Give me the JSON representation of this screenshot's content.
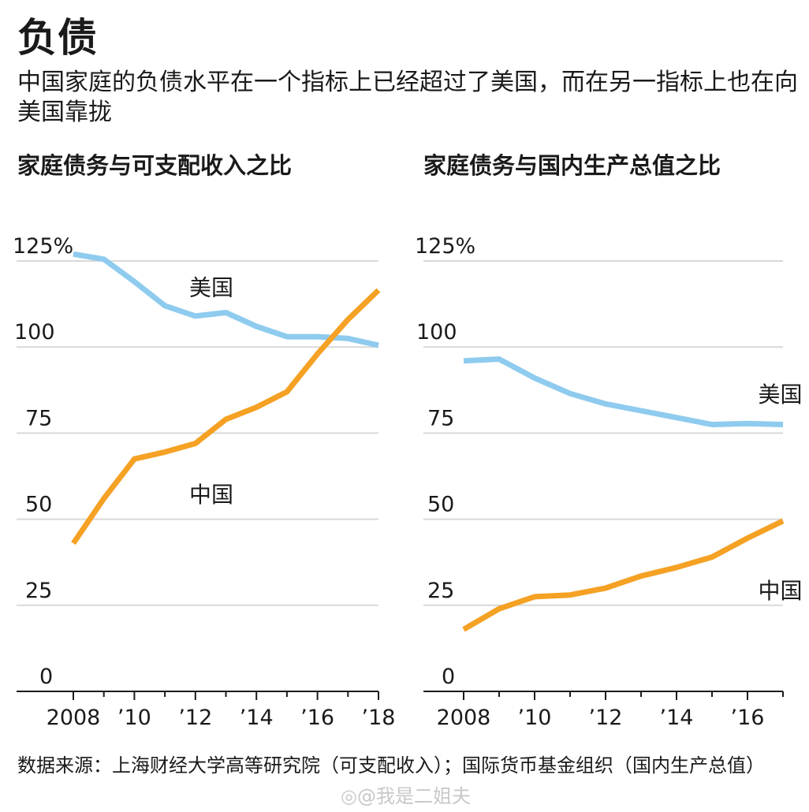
{
  "header": {
    "title": "负债",
    "subtitle": "中国家庭的负债水平在一个指标上已经超过了美国，而在另一指标上也在向美国靠拢"
  },
  "colors": {
    "us": "#8ecbee",
    "china": "#f5a124",
    "grid": "#d9d9d9",
    "axis": "#1a1a1a"
  },
  "chart_data": [
    {
      "type": "line",
      "title": "家庭债务与可支配收入之比",
      "xlabel": "",
      "ylabel": "",
      "x": [
        2008,
        2009,
        2010,
        2011,
        2012,
        2013,
        2014,
        2015,
        2016,
        2017,
        2018
      ],
      "xlim": [
        2008,
        2018
      ],
      "ylim": [
        0,
        125
      ],
      "yticks": [
        0,
        25,
        50,
        75,
        100,
        125
      ],
      "ytick_labels": [
        "0",
        "25",
        "50",
        "75",
        "100",
        "125%"
      ],
      "xticks": [
        2008,
        2010,
        2012,
        2014,
        2016,
        2018
      ],
      "xtick_labels": [
        "2008",
        "’10",
        "’12",
        "’14",
        "’16",
        "’18"
      ],
      "grid": true,
      "series": [
        {
          "name": "美国",
          "key": "us",
          "values": [
            127,
            125.5,
            119,
            112,
            109,
            110,
            106,
            103,
            103,
            102.5,
            100.5
          ]
        },
        {
          "name": "中国",
          "key": "china",
          "values": [
            43,
            56,
            67.5,
            69.5,
            72,
            79,
            82.5,
            87,
            98,
            108,
            116.5
          ]
        }
      ],
      "annotations": [
        {
          "text": "美国",
          "series": "us",
          "x": 2011.8,
          "y": 115
        },
        {
          "text": "中国",
          "series": "china",
          "x": 2011.8,
          "y": 55
        }
      ]
    },
    {
      "type": "line",
      "title": "家庭债务与国内生产总值之比",
      "xlabel": "",
      "ylabel": "",
      "x": [
        2008,
        2009,
        2010,
        2011,
        2012,
        2013,
        2014,
        2015,
        2016,
        2017
      ],
      "xlim": [
        2008,
        2017
      ],
      "ylim": [
        0,
        125
      ],
      "yticks": [
        0,
        25,
        50,
        75,
        100,
        125
      ],
      "ytick_labels": [
        "0",
        "25",
        "50",
        "75",
        "100",
        "125%"
      ],
      "xticks": [
        2008,
        2010,
        2012,
        2014,
        2016
      ],
      "xtick_labels": [
        "2008",
        "’10",
        "’12",
        "’14",
        "’16"
      ],
      "grid": true,
      "series": [
        {
          "name": "美国",
          "key": "us",
          "values": [
            96,
            96.5,
            91,
            86.5,
            83.5,
            81.5,
            79.5,
            77.5,
            77.8,
            77.5
          ]
        },
        {
          "name": "中国",
          "key": "china",
          "values": [
            18,
            24,
            27.5,
            28,
            30,
            33.5,
            36,
            39,
            44.5,
            49.5
          ]
        }
      ],
      "annotations": [
        {
          "text": "美国",
          "series": "us",
          "x": 2016.3,
          "y": 84
        },
        {
          "text": "中国",
          "series": "china",
          "x": 2016.3,
          "y": 27
        }
      ]
    }
  ],
  "footer": {
    "source": "数据来源：上海财经大学高等研究院（可支配收入）；国际货币基金组织（国内生产总值）"
  },
  "watermark": "◎@我是二姐夫"
}
